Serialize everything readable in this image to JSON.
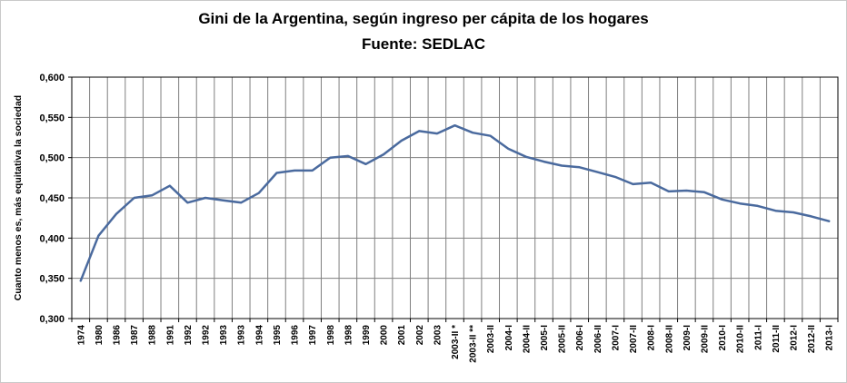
{
  "chart_data": {
    "type": "line",
    "title": "Gini de la Argentina, según ingreso per cápita de los hogares",
    "subtitle": "Fuente: SEDLAC",
    "ylabel": "Cuanto menos es, más equitativa la sociedad",
    "xlabel": "",
    "ylim": [
      0.3,
      0.6
    ],
    "ytick_step": 0.05,
    "ytick_labels": [
      "0,300",
      "0,350",
      "0,400",
      "0,450",
      "0,500",
      "0,550",
      "0,600"
    ],
    "grid": true,
    "legend_position": "none",
    "line_color": "#4a6a9e",
    "grid_color": "#7f7f7f",
    "axis_color": "#000000",
    "categories": [
      "1974",
      "1980",
      "1986",
      "1987",
      "1988",
      "1991",
      "1992",
      "1992",
      "1993",
      "1993",
      "1994",
      "1995",
      "1996",
      "1997",
      "1998",
      "1998",
      "1999",
      "2000",
      "2001",
      "2002",
      "2003",
      "2003-II *",
      "2003-II **",
      "2003-II",
      "2004-I",
      "2004-II",
      "2005-I",
      "2005-II",
      "2006-I",
      "2006-II",
      "2007-I",
      "2007-II",
      "2008-I",
      "2008-II",
      "2009-I",
      "2009-II",
      "2010-I",
      "2010-II",
      "2011-I",
      "2011-II",
      "2012-I",
      "2012-II",
      "2013-I"
    ],
    "values": [
      0.347,
      0.403,
      0.43,
      0.45,
      0.453,
      0.465,
      0.444,
      0.45,
      0.447,
      0.444,
      0.456,
      0.481,
      0.484,
      0.484,
      0.5,
      0.502,
      0.492,
      0.504,
      0.521,
      0.533,
      0.53,
      0.54,
      0.531,
      0.527,
      0.511,
      0.501,
      0.495,
      0.49,
      0.488,
      0.482,
      0.476,
      0.467,
      0.469,
      0.458,
      0.459,
      0.457,
      0.448,
      0.443,
      0.44,
      0.434,
      0.432,
      0.427,
      0.421
    ]
  }
}
